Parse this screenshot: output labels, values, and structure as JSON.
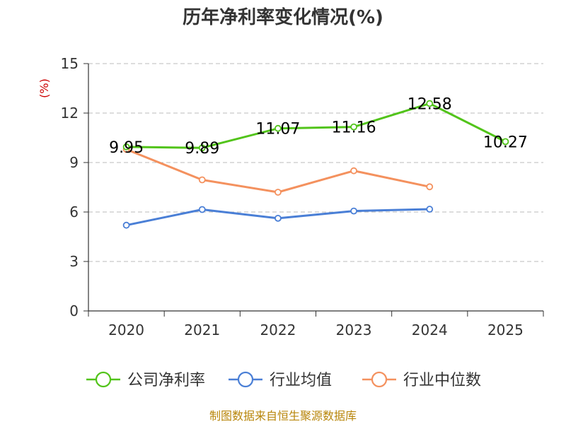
{
  "chart_data": {
    "type": "line",
    "title": "历年净利率变化情况(%)",
    "ylabel": "(%)",
    "xlabel": "",
    "categories": [
      "2020",
      "2021",
      "2022",
      "2023",
      "2024",
      "2025"
    ],
    "ylim": [
      0,
      15
    ],
    "yticks": [
      0,
      3,
      6,
      9,
      12,
      15
    ],
    "grid": true,
    "legend_position": "bottom",
    "series": [
      {
        "name": "公司净利率",
        "color": "#52c41a",
        "values": [
          9.95,
          9.89,
          11.07,
          11.16,
          12.58,
          10.27
        ],
        "labels": [
          "9.95",
          "9.89",
          "11.07",
          "11.16",
          "12.58",
          "10.27"
        ]
      },
      {
        "name": "行业均值",
        "color": "#4a7fd6",
        "values": [
          5.2,
          6.15,
          5.62,
          6.06,
          6.17,
          null
        ]
      },
      {
        "name": "行业中位数",
        "color": "#f4915e",
        "values": [
          9.8,
          7.95,
          7.2,
          8.5,
          7.53,
          null
        ]
      }
    ],
    "source": "制图数据来自恒生聚源数据库"
  }
}
